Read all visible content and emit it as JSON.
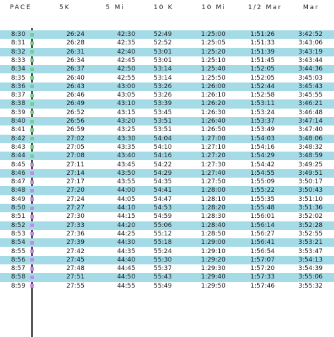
{
  "headers": [
    "PACE",
    "5K",
    "5 Mi",
    "10 K",
    "10 Mi",
    "1/2 Mar",
    "Mar"
  ],
  "colors": {
    "row_highlight": "#a4dbe6",
    "marker_green": "#6fd18a",
    "marker_purple": "#c28be8"
  },
  "rows": [
    [
      "8:30",
      "26:24",
      "42:30",
      "52:49",
      "1:25:00",
      "1:51:26",
      "3:42:52"
    ],
    [
      "8:31",
      "26:28",
      "42:35",
      "52:52",
      "1:25:05",
      "1:51:33",
      "3:43:06"
    ],
    [
      "8:32",
      "26:31",
      "42:40",
      "53:01",
      "1:25:20",
      "1:51:39",
      "3:43:19"
    ],
    [
      "8:33",
      "26:34",
      "42:45",
      "53:01",
      "1:25:10",
      "1:51:45",
      "3:43:44"
    ],
    [
      "8:34",
      "26:37",
      "42:50",
      "53:14",
      "1:25:40",
      "1:52:05",
      "3:44:36"
    ],
    [
      "8:35",
      "26:40",
      "42:55",
      "53:14",
      "1:25:50",
      "1:52:05",
      "3:45:03"
    ],
    [
      "8:36",
      "26:43",
      "43:00",
      "53:26",
      "1:26:00",
      "1:52:44",
      "3:45:43"
    ],
    [
      "8:37",
      "26:46",
      "43:05",
      "53:26",
      "1:26:10",
      "1:52:58",
      "3:45:55"
    ],
    [
      "8:38",
      "26:49",
      "43:10",
      "53:39",
      "1:26:20",
      "1:53:11",
      "3:46:21"
    ],
    [
      "8:39",
      "26:52",
      "43:15",
      "53:45",
      "1:26:30",
      "1:53:24",
      "3:46:48"
    ],
    [
      "8:40",
      "26:56",
      "43:20",
      "53:51",
      "1:26:40",
      "1:53:37",
      "3:47:14"
    ],
    [
      "8:41",
      "26:59",
      "43:25",
      "53:51",
      "1:26:50",
      "1:53:49",
      "3:47:40"
    ],
    [
      "8:42",
      "27:02",
      "43:30",
      "54:04",
      "1:27:00",
      "1:54:03",
      "3:48:06"
    ],
    [
      "8:43",
      "27:05",
      "43:35",
      "54:10",
      "1:27:10",
      "1:54:16",
      "3:48:32"
    ],
    [
      "8:44",
      "27:08",
      "43:40",
      "54:16",
      "1:27:20",
      "1:54:29",
      "3:48:59"
    ],
    [
      "8:45",
      "27:11",
      "43:45",
      "54:22",
      "1:27:30",
      "1:54:42",
      "3:49:25"
    ],
    [
      "8:46",
      "27:14",
      "43:50",
      "54:29",
      "1:27:40",
      "1:54:55",
      "3:49:51"
    ],
    [
      "8:47",
      "27:17",
      "43:55",
      "54:35",
      "1:27:50",
      "1:55:09",
      "3:50:17"
    ],
    [
      "8:48",
      "27:20",
      "44:00",
      "54:41",
      "1:28:00",
      "1:55:22",
      "3:50:43"
    ],
    [
      "8:49",
      "27:24",
      "44:05",
      "54:47",
      "1:28:10",
      "1:55:35",
      "3:51:10"
    ],
    [
      "8:50",
      "27:27",
      "44:10",
      "54:53",
      "1:28:20",
      "1:55:48",
      "3:51:36"
    ],
    [
      "8:51",
      "27:30",
      "44:15",
      "54:59",
      "1:28:30",
      "1:56:01",
      "3:52:02"
    ],
    [
      "8:52",
      "27:33",
      "44:20",
      "55:06",
      "1:28:40",
      "1:56:14",
      "3:52:28"
    ],
    [
      "8:53",
      "27:36",
      "44:25",
      "55:12",
      "1:28:50",
      "1:56:27",
      "3:52:55"
    ],
    [
      "8:54",
      "27:39",
      "44:30",
      "55:18",
      "1:29:00",
      "1:56:41",
      "3:53:21"
    ],
    [
      "8:55",
      "27:42",
      "44:35",
      "55:24",
      "1:29:10",
      "1:56:54",
      "3:53:47"
    ],
    [
      "8:56",
      "27:45",
      "44:40",
      "55:30",
      "1:29:20",
      "1:57:07",
      "3:54:13"
    ],
    [
      "8:57",
      "27:48",
      "44:45",
      "55:37",
      "1:29:30",
      "1:57:20",
      "3:54:39"
    ],
    [
      "8:58",
      "27:51",
      "44:50",
      "55:43",
      "1:29:40",
      "1:57:33",
      "3:55:06"
    ],
    [
      "8:59",
      "27:55",
      "44:55",
      "55:49",
      "1:29:50",
      "1:57:46",
      "3:55:32"
    ]
  ]
}
